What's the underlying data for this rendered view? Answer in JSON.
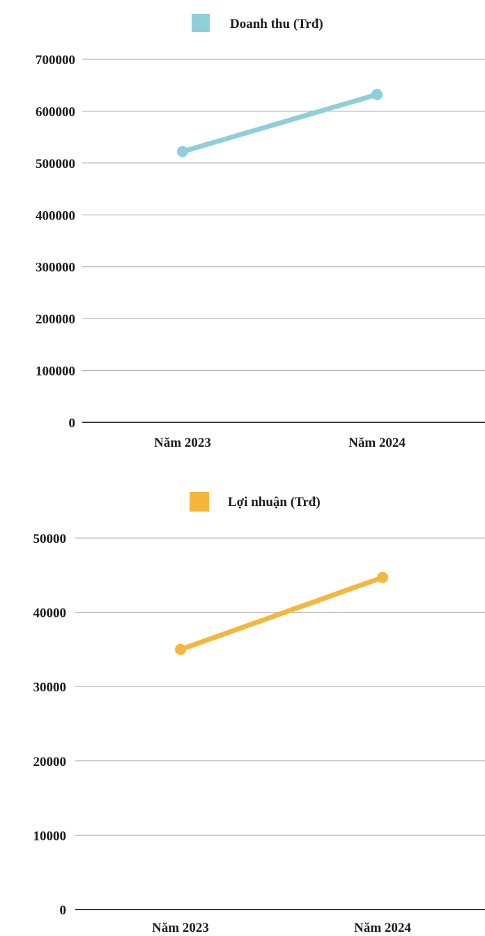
{
  "chart_data": [
    {
      "type": "line",
      "categories": [
        "Năm 2023",
        "Năm 2024"
      ],
      "series": [
        {
          "name": "Doanh thu (Trđ)",
          "values": [
            522000,
            632000
          ],
          "color": "#8ecfd9"
        }
      ],
      "yticks": [
        "0",
        "100000",
        "200000",
        "300000",
        "400000",
        "500000",
        "600000",
        "700000"
      ],
      "ylim": [
        0,
        700000
      ],
      "grid": true,
      "legend_position": "top-center"
    },
    {
      "type": "line",
      "categories": [
        "Năm 2023",
        "Năm 2024"
      ],
      "series": [
        {
          "name": "Lợi nhuận (Trđ)",
          "values": [
            35000,
            44700
          ],
          "color": "#f4b63c"
        }
      ],
      "yticks": [
        "0",
        "10000",
        "20000",
        "30000",
        "40000",
        "50000"
      ],
      "ylim": [
        0,
        50000
      ],
      "grid": true,
      "legend_position": "top-center"
    }
  ]
}
